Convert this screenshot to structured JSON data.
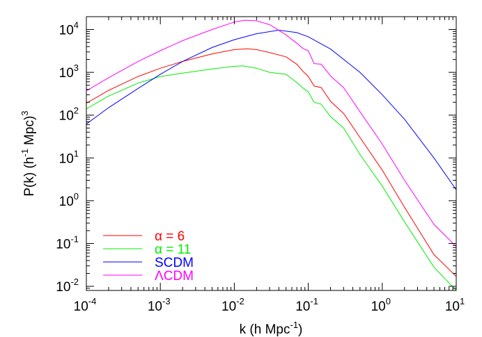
{
  "chart_data": {
    "type": "line",
    "xlabel": {
      "base": "k (h Mpc",
      "sup": "-1",
      "tail": ")"
    },
    "ylabel": {
      "a": "P(k) (h",
      "sup1": "-1",
      "b": " Mpc)",
      "sup2": "3"
    },
    "x_scale": "log",
    "y_scale": "log",
    "xlim": [
      0.0001,
      10
    ],
    "ylim": [
      0.008,
      20000
    ],
    "grid": false,
    "legend_position": "bottom-left",
    "x_ticks": [
      {
        "base": "10",
        "exp": "-4",
        "value": 0.0001
      },
      {
        "base": "10",
        "exp": "-3",
        "value": 0.001
      },
      {
        "base": "10",
        "exp": "-2",
        "value": 0.01
      },
      {
        "base": "10",
        "exp": "-1",
        "value": 0.1
      },
      {
        "base": "10",
        "exp": "0",
        "value": 1
      },
      {
        "base": "10",
        "exp": "1",
        "value": 10
      }
    ],
    "y_ticks": [
      {
        "base": "10",
        "exp": "-2",
        "value": 0.01
      },
      {
        "base": "10",
        "exp": "-1",
        "value": 0.1
      },
      {
        "base": "10",
        "exp": "0",
        "value": 1
      },
      {
        "base": "10",
        "exp": "1",
        "value": 10
      },
      {
        "base": "10",
        "exp": "2",
        "value": 100
      },
      {
        "base": "10",
        "exp": "3",
        "value": 1000
      },
      {
        "base": "10",
        "exp": "4",
        "value": 10000
      }
    ],
    "series": [
      {
        "name": "α = 6",
        "color": "#ff0000",
        "points": [
          [
            0.0001,
            190
          ],
          [
            0.0002,
            380
          ],
          [
            0.0005,
            800
          ],
          [
            0.001,
            1250
          ],
          [
            0.002,
            1800
          ],
          [
            0.005,
            2700
          ],
          [
            0.01,
            3400
          ],
          [
            0.015,
            3550
          ],
          [
            0.02,
            3400
          ],
          [
            0.03,
            2900
          ],
          [
            0.05,
            2300
          ],
          [
            0.07,
            1550
          ],
          [
            0.085,
            1050
          ],
          [
            0.1,
            800
          ],
          [
            0.12,
            480
          ],
          [
            0.15,
            440
          ],
          [
            0.2,
            210
          ],
          [
            0.3,
            110
          ],
          [
            0.5,
            30
          ],
          [
            1,
            5.2
          ],
          [
            2,
            0.7
          ],
          [
            5,
            0.055
          ],
          [
            10,
            0.017
          ]
        ]
      },
      {
        "name": "α = 11",
        "color": "#00ee00",
        "points": [
          [
            0.0001,
            140
          ],
          [
            0.0002,
            280
          ],
          [
            0.0005,
            560
          ],
          [
            0.001,
            800
          ],
          [
            0.002,
            960
          ],
          [
            0.005,
            1200
          ],
          [
            0.01,
            1380
          ],
          [
            0.013,
            1420
          ],
          [
            0.02,
            1250
          ],
          [
            0.03,
            1000
          ],
          [
            0.05,
            900
          ],
          [
            0.07,
            580
          ],
          [
            0.085,
            430
          ],
          [
            0.1,
            350
          ],
          [
            0.12,
            200
          ],
          [
            0.15,
            180
          ],
          [
            0.2,
            92
          ],
          [
            0.3,
            50
          ],
          [
            0.5,
            12
          ],
          [
            1,
            2.2
          ],
          [
            2,
            0.32
          ],
          [
            5,
            0.028
          ],
          [
            10,
            0.008
          ]
        ]
      },
      {
        "name": "SCDM",
        "color": "#0000ff",
        "points": [
          [
            0.0001,
            62
          ],
          [
            0.0002,
            150
          ],
          [
            0.0005,
            420
          ],
          [
            0.001,
            900
          ],
          [
            0.002,
            1800
          ],
          [
            0.005,
            3800
          ],
          [
            0.01,
            5800
          ],
          [
            0.02,
            8000
          ],
          [
            0.04,
            9700
          ],
          [
            0.07,
            8500
          ],
          [
            0.1,
            6800
          ],
          [
            0.2,
            3500
          ],
          [
            0.5,
            1000
          ],
          [
            1,
            300
          ],
          [
            2,
            80
          ],
          [
            5,
            10
          ],
          [
            10,
            1.8
          ]
        ]
      },
      {
        "name": "ΛCDM",
        "color": "#ff00ff",
        "points": [
          [
            0.0001,
            370
          ],
          [
            0.0002,
            750
          ],
          [
            0.0005,
            1800
          ],
          [
            0.001,
            3200
          ],
          [
            0.002,
            5500
          ],
          [
            0.005,
            10000
          ],
          [
            0.01,
            15000
          ],
          [
            0.014,
            16500
          ],
          [
            0.02,
            16000
          ],
          [
            0.03,
            13000
          ],
          [
            0.05,
            7500
          ],
          [
            0.07,
            4800
          ],
          [
            0.085,
            3600
          ],
          [
            0.1,
            3200
          ],
          [
            0.12,
            1600
          ],
          [
            0.15,
            1550
          ],
          [
            0.2,
            820
          ],
          [
            0.3,
            440
          ],
          [
            0.5,
            120
          ],
          [
            1,
            21
          ],
          [
            2,
            3
          ],
          [
            5,
            0.28
          ],
          [
            10,
            0.085
          ]
        ]
      }
    ]
  }
}
